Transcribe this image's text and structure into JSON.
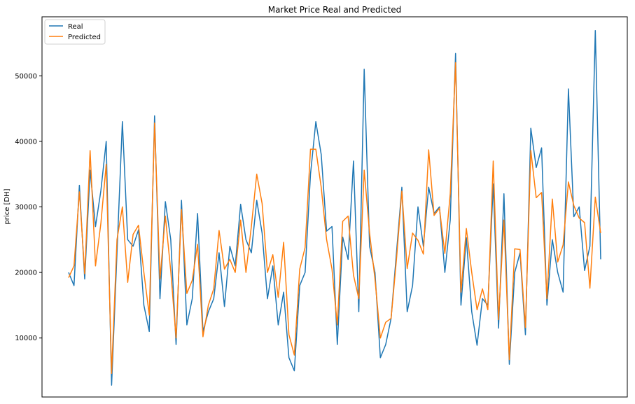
{
  "chart_data": {
    "type": "line",
    "title": "Market Price Real and Predicted",
    "xlabel": "",
    "ylabel": "price [DH]",
    "ylim": [
      1000,
      59000
    ],
    "yticks": [
      10000,
      20000,
      30000,
      40000,
      50000
    ],
    "grid": false,
    "legend_position": "top-left",
    "x_ticks_visible": false,
    "series": [
      {
        "name": "Real",
        "color": "#1f77b4",
        "values": [
          20000,
          18000,
          33300,
          19000,
          35600,
          27000,
          32500,
          40000,
          2800,
          23000,
          43000,
          25000,
          24000,
          26500,
          15000,
          11000,
          43900,
          16000,
          30800,
          25000,
          9000,
          31000,
          12000,
          16000,
          29000,
          11000,
          14000,
          16000,
          23000,
          14800,
          24000,
          21000,
          30400,
          25000,
          23000,
          31000,
          26000,
          16000,
          21000,
          12000,
          17000,
          7000,
          5000,
          18000,
          20000,
          35000,
          43000,
          38000,
          26300,
          27000,
          9000,
          25400,
          22000,
          37000,
          14000,
          51000,
          24000,
          20000,
          7000,
          9000,
          13000,
          23000,
          33000,
          14000,
          18000,
          30000,
          24000,
          33000,
          29000,
          30000,
          20000,
          28000,
          53400,
          15000,
          25300,
          14000,
          8900,
          16000,
          15000,
          33500,
          11500,
          32000,
          6000,
          20000,
          23000,
          10500,
          42000,
          36000,
          39000,
          15000,
          25000,
          20000,
          17000,
          48000,
          28500,
          30000,
          20300,
          24000,
          56900,
          22000
        ]
      },
      {
        "name": "Predicted",
        "color": "#ff7f0e",
        "values": [
          19200,
          21000,
          32300,
          19800,
          38600,
          21000,
          27500,
          36500,
          4600,
          25000,
          30000,
          18500,
          25800,
          27200,
          20000,
          13500,
          42800,
          19000,
          28600,
          20200,
          10000,
          29600,
          16800,
          18800,
          24300,
          10200,
          15000,
          17500,
          26400,
          20500,
          22000,
          20000,
          28000,
          20000,
          27000,
          35000,
          30500,
          20000,
          22700,
          16200,
          24600,
          10500,
          7400,
          20500,
          23800,
          38800,
          38800,
          33000,
          25000,
          20500,
          12000,
          27800,
          28600,
          19600,
          16000,
          35600,
          26000,
          19000,
          10000,
          12400,
          13000,
          22000,
          32400,
          20600,
          26000,
          24900,
          22800,
          38700,
          28700,
          29800,
          22900,
          32000,
          52000,
          17000,
          26700,
          20000,
          14300,
          17500,
          14300,
          37000,
          12800,
          28000,
          6700,
          23600,
          23500,
          11600,
          38600,
          31400,
          32200,
          16000,
          31200,
          21600,
          24200,
          33800,
          30200,
          28300,
          27600,
          17600,
          31500,
          26000
        ]
      }
    ]
  }
}
